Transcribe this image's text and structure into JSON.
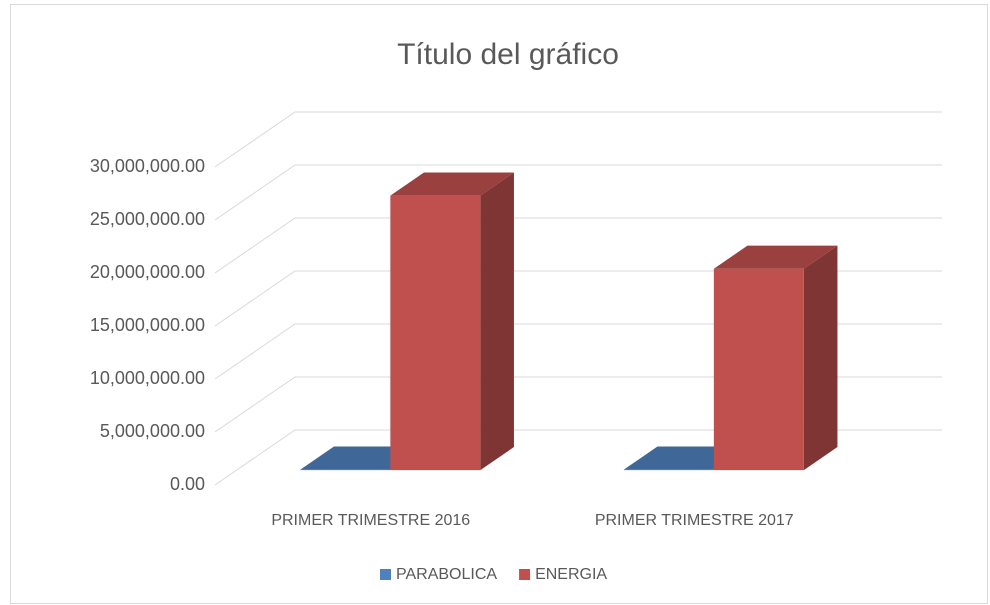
{
  "chart_data": {
    "type": "bar3d",
    "title": "Título del gráfico",
    "categories": [
      "PRIMER TRIMESTRE 2016",
      "PRIMER TRIMESTRE 2017"
    ],
    "series": [
      {
        "name": "PARABOLICA",
        "color": "#4f81bd",
        "values": [
          50000,
          50000
        ]
      },
      {
        "name": "ENERGIA",
        "color": "#c0504d",
        "values": [
          25900000,
          19000000
        ]
      }
    ],
    "ylim": [
      0,
      30000000
    ],
    "yticks": [
      {
        "value": 0,
        "label": "0.00"
      },
      {
        "value": 5000000,
        "label": "5,000,000.00"
      },
      {
        "value": 10000000,
        "label": "10,000,000.00"
      },
      {
        "value": 15000000,
        "label": "15,000,000.00"
      },
      {
        "value": 20000000,
        "label": "20,000,000.00"
      },
      {
        "value": 25000000,
        "label": "25,000,000.00"
      },
      {
        "value": 30000000,
        "label": "30,000,000.00"
      }
    ],
    "grid": true,
    "legend": "bottom"
  }
}
